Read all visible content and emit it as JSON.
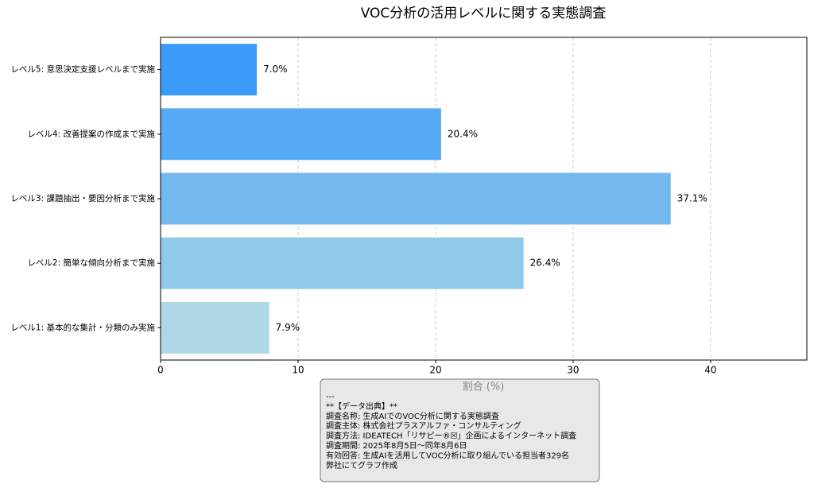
{
  "chart_data": {
    "type": "bar",
    "orientation": "horizontal",
    "title": "VOC分析の活用レベルに関する実態調査",
    "categories": [
      "レベル1: 基本的な集計・分類のみ実施",
      "レベル2: 簡単な傾向分析まで実施",
      "レベル3: 課題抽出・要因分析まで実施",
      "レベル4: 改善提案の作成まで実施",
      "レベル5: 意思決定支援レベルまで実施"
    ],
    "values": [
      7.9,
      26.4,
      37.1,
      20.4,
      7.0
    ],
    "value_labels": [
      "7.9%",
      "26.4%",
      "37.1%",
      "20.4%",
      "7.0%"
    ],
    "colors": [
      "#add8e6",
      "#91cae9",
      "#73b9ee",
      "#56aaf3",
      "#3a9cf8"
    ],
    "xlabel": "割合 (%)",
    "xlim": [
      0,
      47
    ],
    "xticks": [
      0,
      10,
      20,
      30,
      40
    ],
    "grid": true,
    "annotation": [
      "---",
      "**【データ出典】**",
      "調査名称: 生成AIでのVOC分析に関する実態調査",
      "調査主体: 株式会社プラスアルファ・コンサルティング",
      "調査方法: IDEATECH「リサピー®☒」企画によるインターネット調査",
      "調査期間: 2025年8月5日～同年8月6日",
      "有効回答: 生成AIを活用してVOC分析に取り組んでいる担当者329名",
      "弊社にてグラフ作成"
    ]
  }
}
